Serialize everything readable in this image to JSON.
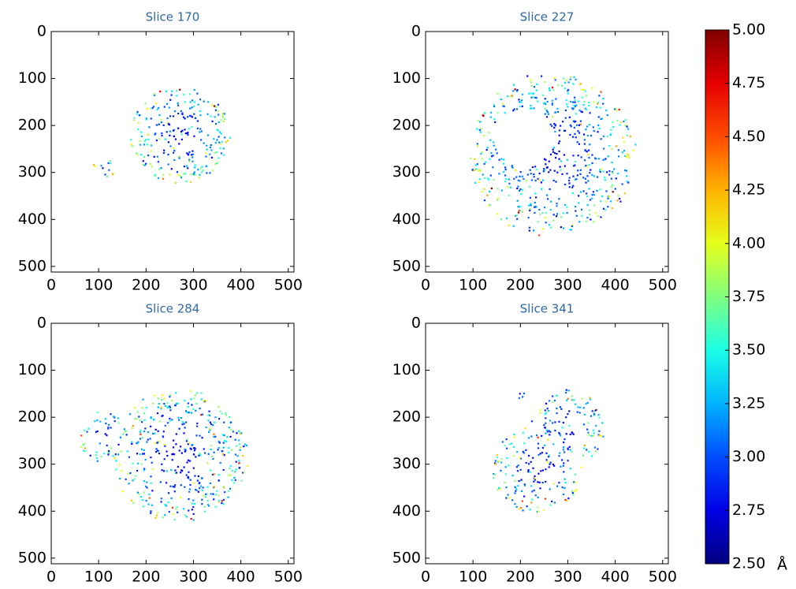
{
  "chart_data": [
    {
      "type": "image",
      "title": "Slice 170",
      "xlim": [
        0,
        512
      ],
      "ylim": [
        512,
        0
      ],
      "xticks": [
        0,
        100,
        200,
        300,
        400,
        500
      ],
      "yticks": [
        0,
        100,
        200,
        300,
        400,
        500
      ]
    },
    {
      "type": "image",
      "title": "Slice 227",
      "xlim": [
        0,
        512
      ],
      "ylim": [
        512,
        0
      ],
      "xticks": [
        0,
        100,
        200,
        300,
        400,
        500
      ],
      "yticks": [
        0,
        100,
        200,
        300,
        400,
        500
      ]
    },
    {
      "type": "image",
      "title": "Slice 284",
      "xlim": [
        0,
        512
      ],
      "ylim": [
        512,
        0
      ],
      "xticks": [
        0,
        100,
        200,
        300,
        400,
        500
      ],
      "yticks": [
        0,
        100,
        200,
        300,
        400,
        500
      ]
    },
    {
      "type": "image",
      "title": "Slice 341",
      "xlim": [
        0,
        512
      ],
      "ylim": [
        512,
        0
      ],
      "xticks": [
        0,
        100,
        200,
        300,
        400,
        500
      ],
      "yticks": [
        0,
        100,
        200,
        300,
        400,
        500
      ]
    },
    {
      "type": "colorbar",
      "colormap": "jet",
      "unit": "Å",
      "ylim": [
        2.5,
        5.0
      ],
      "yticks": [
        {
          "value": 2.5,
          "label": "2.50"
        },
        {
          "value": 2.75,
          "label": "2.75"
        },
        {
          "value": 3.0,
          "label": "3.00"
        },
        {
          "value": 3.25,
          "label": "3.25"
        },
        {
          "value": 3.5,
          "label": "3.50"
        },
        {
          "value": 3.75,
          "label": "3.75"
        },
        {
          "value": 4.0,
          "label": "4.00"
        },
        {
          "value": 4.25,
          "label": "4.25"
        },
        {
          "value": 4.5,
          "label": "4.50"
        },
        {
          "value": 4.75,
          "label": "4.75"
        },
        {
          "value": 5.0,
          "label": "5.00"
        }
      ]
    }
  ]
}
